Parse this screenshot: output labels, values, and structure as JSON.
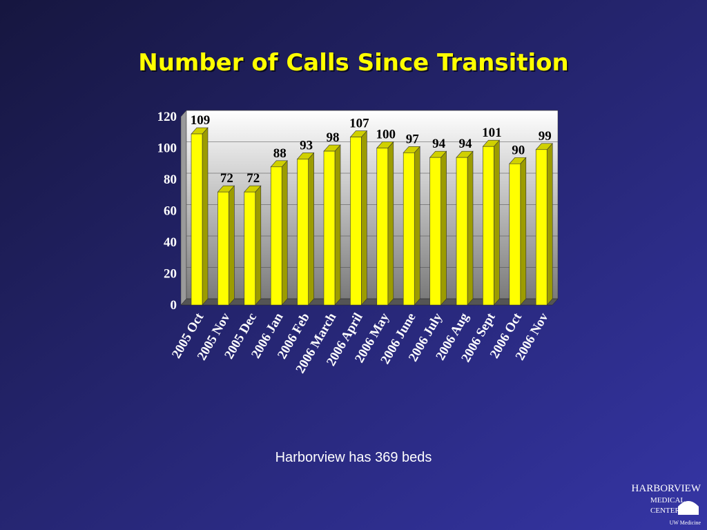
{
  "chart_data": {
    "type": "bar3d",
    "title": "Number of Calls Since Transition",
    "categories": [
      "2005 Oct",
      "2005 Nov",
      "2005 Dec",
      "2006 Jan",
      "2006 Feb",
      "2006 March",
      "2006 April",
      "2006 May",
      "2006 June",
      "2006 July",
      "2006 Aug",
      "2006 Sept",
      "2006 Oct",
      "2006 Nov"
    ],
    "values": [
      109,
      72,
      72,
      88,
      93,
      98,
      107,
      100,
      97,
      94,
      94,
      101,
      90,
      99
    ],
    "color": "#ffff00",
    "ylim": [
      0,
      120
    ],
    "yticks": [
      0,
      20,
      40,
      60,
      80,
      100,
      120
    ],
    "grid": true,
    "annotation": "Harborview has 369 beds",
    "logo": [
      "HARBORVIEW",
      "MEDICAL",
      "CENTER",
      "UW Medicine"
    ]
  }
}
